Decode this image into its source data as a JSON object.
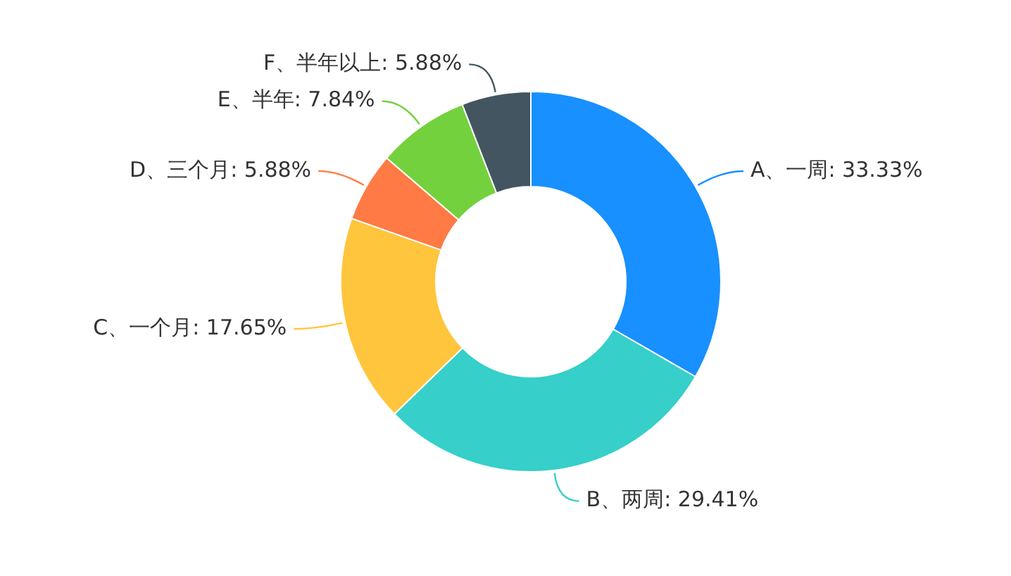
{
  "chart_data": {
    "type": "donut",
    "categories": [
      "A、一周",
      "B、两周",
      "C、一个月",
      "D、三个月",
      "E、半年",
      "F、半年以上"
    ],
    "values": [
      33.33,
      29.41,
      17.65,
      5.88,
      7.84,
      5.88
    ],
    "value_labels": [
      "33.33%",
      "29.41%",
      "17.65%",
      "5.88%",
      "7.84%",
      "5.88%"
    ],
    "colors": [
      "#1890ff",
      "#36cfc9",
      "#ffc53d",
      "#ff7a45",
      "#73d13d",
      "#435560"
    ],
    "legend": false
  }
}
